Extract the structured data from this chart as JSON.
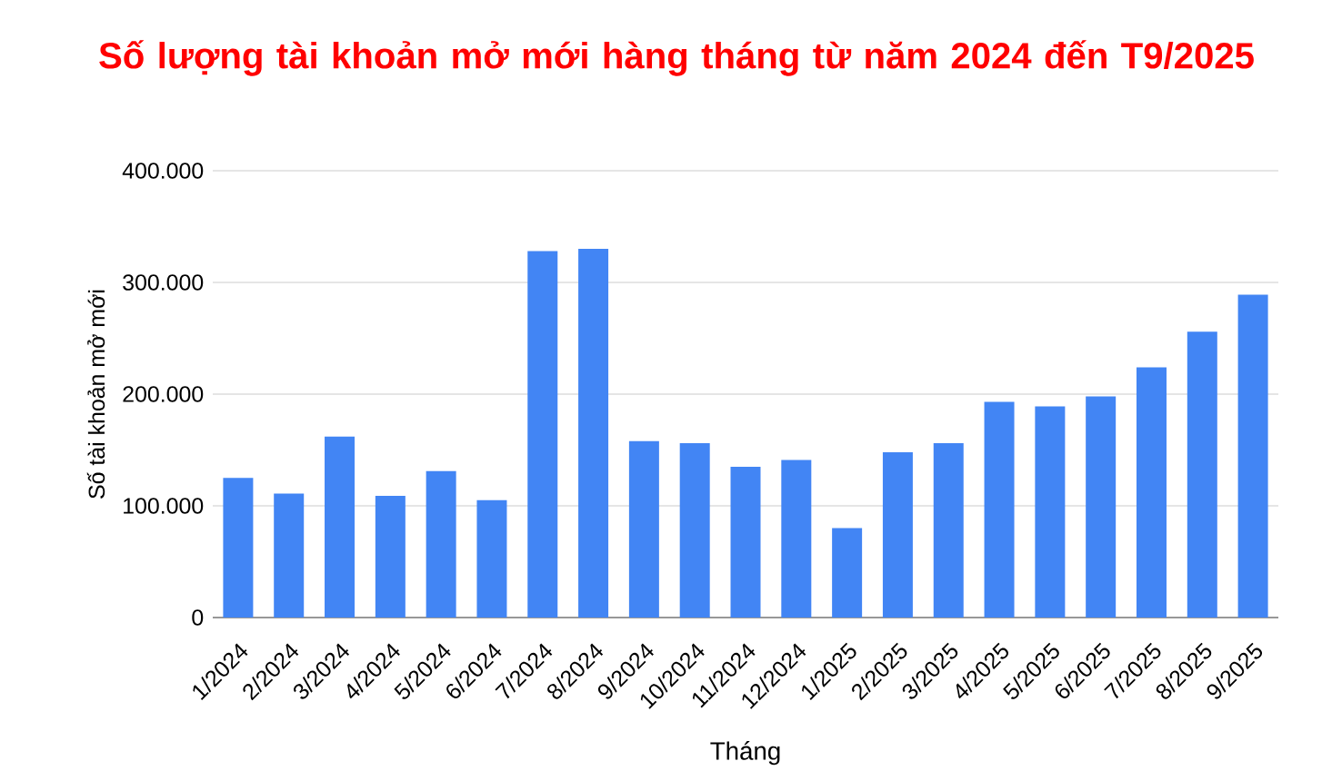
{
  "chart_data": {
    "type": "bar",
    "title": "Số lượng tài khoản mở mới hàng tháng từ năm 2024 đến T9/2025",
    "xlabel": "Tháng",
    "ylabel": "Số tài khoản mở mới",
    "categories": [
      "1/2024",
      "2/2024",
      "3/2024",
      "4/2024",
      "5/2024",
      "6/2024",
      "7/2024",
      "8/2024",
      "9/2024",
      "10/2024",
      "11/2024",
      "12/2024",
      "1/2025",
      "2/2025",
      "3/2025",
      "4/2025",
      "5/2025",
      "6/2025",
      "7/2025",
      "8/2025",
      "9/2025"
    ],
    "values": [
      125000,
      111000,
      162000,
      109000,
      131000,
      105000,
      328000,
      330000,
      158000,
      156000,
      135000,
      141000,
      80000,
      148000,
      156000,
      193000,
      189000,
      198000,
      224000,
      256000,
      289000
    ],
    "color": "#4285f4",
    "ylim": [
      0,
      400000
    ],
    "yticks": [
      0,
      {
        "value": 100000,
        "label": "100.000"
      },
      {
        "value": 200000,
        "label": "200.000"
      },
      {
        "value": 300000,
        "label": "300.000"
      },
      {
        "value": 400000,
        "label": "400.000"
      }
    ],
    "grid": "y"
  }
}
